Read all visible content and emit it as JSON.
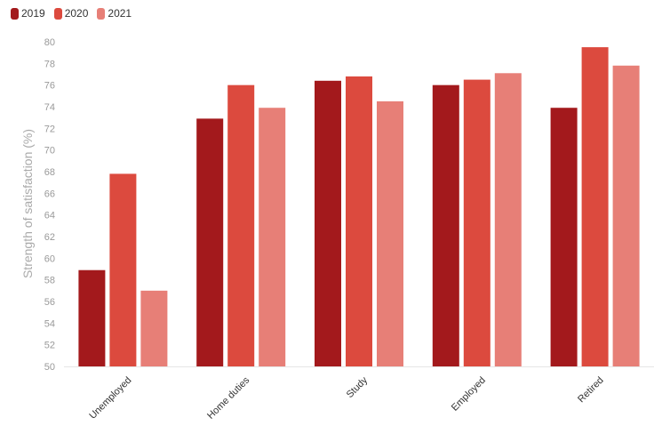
{
  "chart_data": {
    "type": "bar",
    "title": "",
    "xlabel": "",
    "ylabel": "Strength of satisfaction (%)",
    "ylim": [
      50,
      80
    ],
    "yticks": [
      50,
      52,
      54,
      56,
      58,
      60,
      62,
      64,
      66,
      68,
      70,
      72,
      74,
      76,
      78,
      80
    ],
    "categories": [
      "Unemployed",
      "Home duties",
      "Study",
      "Employed",
      "Retired"
    ],
    "series": [
      {
        "name": "2019",
        "color": "#a3191c",
        "values": [
          58.9,
          72.9,
          76.4,
          76.0,
          73.9
        ]
      },
      {
        "name": "2020",
        "color": "#dc4a3e",
        "values": [
          67.8,
          76.0,
          76.8,
          76.5,
          79.5
        ]
      },
      {
        "name": "2021",
        "color": "#e77f77",
        "values": [
          57.0,
          73.9,
          74.5,
          77.1,
          77.8
        ]
      }
    ],
    "legend_position": "top-left",
    "grid": false
  }
}
